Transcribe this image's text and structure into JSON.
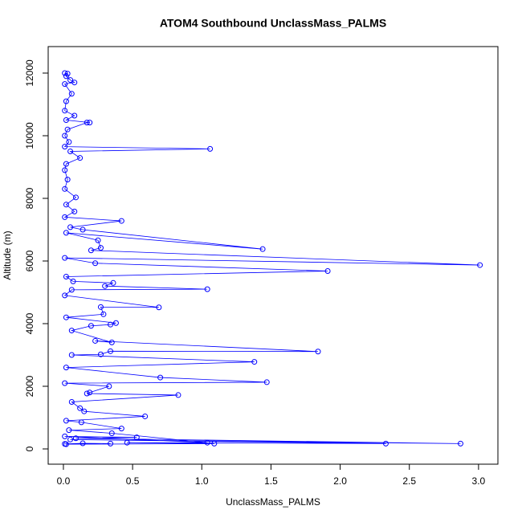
{
  "chart_data": {
    "type": "line",
    "title": "ATOM4 Southbound UnclassMass_PALMS",
    "x_label": "UnclassMass_PALMS",
    "y_label": "Altitude (m)",
    "x": [
      0.01,
      0.03,
      0.02,
      0.05,
      0.08,
      0.01,
      0.06,
      0.02,
      0.01,
      0.08,
      0.02,
      0.19,
      0.17,
      0.03,
      0.01,
      0.04,
      0.01,
      1.06,
      0.05,
      0.12,
      0.02,
      0.01,
      0.03,
      0.01,
      0.09,
      0.02,
      0.08,
      0.01,
      0.42,
      0.05,
      0.14,
      1.44,
      0.02,
      0.25,
      0.27,
      0.2,
      3.01,
      0.01,
      0.23,
      1.91,
      0.02,
      0.07,
      0.36,
      0.3,
      1.04,
      0.06,
      0.01,
      0.69,
      0.27,
      0.29,
      0.02,
      0.38,
      0.34,
      0.2,
      0.06,
      0.35,
      0.23,
      1.84,
      0.34,
      0.27,
      0.06,
      1.38,
      0.02,
      0.7,
      1.47,
      0.01,
      0.33,
      0.19,
      0.17,
      0.83,
      0.06,
      0.12,
      0.15,
      0.59,
      0.02,
      0.13,
      0.42,
      0.04,
      0.35,
      1.04,
      0.01,
      0.53,
      0.09,
      2.87,
      0.05,
      2.33,
      0.46,
      1.09,
      0.02,
      0.34,
      0.14,
      0.01
    ],
    "series": [
      {
        "name": "UnclassMass_PALMS",
        "color": "#0000ff",
        "values": [
          12000,
          11980,
          11900,
          11780,
          11700,
          11650,
          11340,
          11100,
          10800,
          10640,
          10500,
          10420,
          10420,
          10200,
          10000,
          9800,
          9650,
          9580,
          9500,
          9290,
          9100,
          8900,
          8600,
          8300,
          8030,
          7800,
          7580,
          7400,
          7280,
          7080,
          7000,
          6380,
          6900,
          6660,
          6420,
          6340,
          5870,
          6100,
          5930,
          5680,
          5500,
          5350,
          5300,
          5200,
          5100,
          5080,
          4900,
          4520,
          4530,
          4300,
          4200,
          4020,
          3970,
          3930,
          3780,
          3400,
          3450,
          3110,
          3120,
          3020,
          3000,
          2780,
          2600,
          2280,
          2130,
          2100,
          2000,
          1800,
          1770,
          1720,
          1500,
          1300,
          1200,
          1040,
          900,
          850,
          650,
          600,
          500,
          200,
          400,
          370,
          340,
          170,
          300,
          170,
          200,
          170,
          150,
          170,
          180,
          160
        ]
      }
    ],
    "xlim": [
      -0.11,
      3.14
    ],
    "ylim": [
      -487,
      12846
    ],
    "xticks": [
      {
        "value": 0,
        "label": "0.0"
      },
      {
        "value": 0.5,
        "label": "0.5"
      },
      {
        "value": 1,
        "label": "1.0"
      },
      {
        "value": 1.5,
        "label": "1.5"
      },
      {
        "value": 2,
        "label": "2.0"
      },
      {
        "value": 2.5,
        "label": "2.5"
      },
      {
        "value": 3,
        "label": "3.0"
      }
    ],
    "yticks": [
      0,
      2000,
      4000,
      6000,
      8000,
      10000,
      12000
    ],
    "grid": false
  }
}
